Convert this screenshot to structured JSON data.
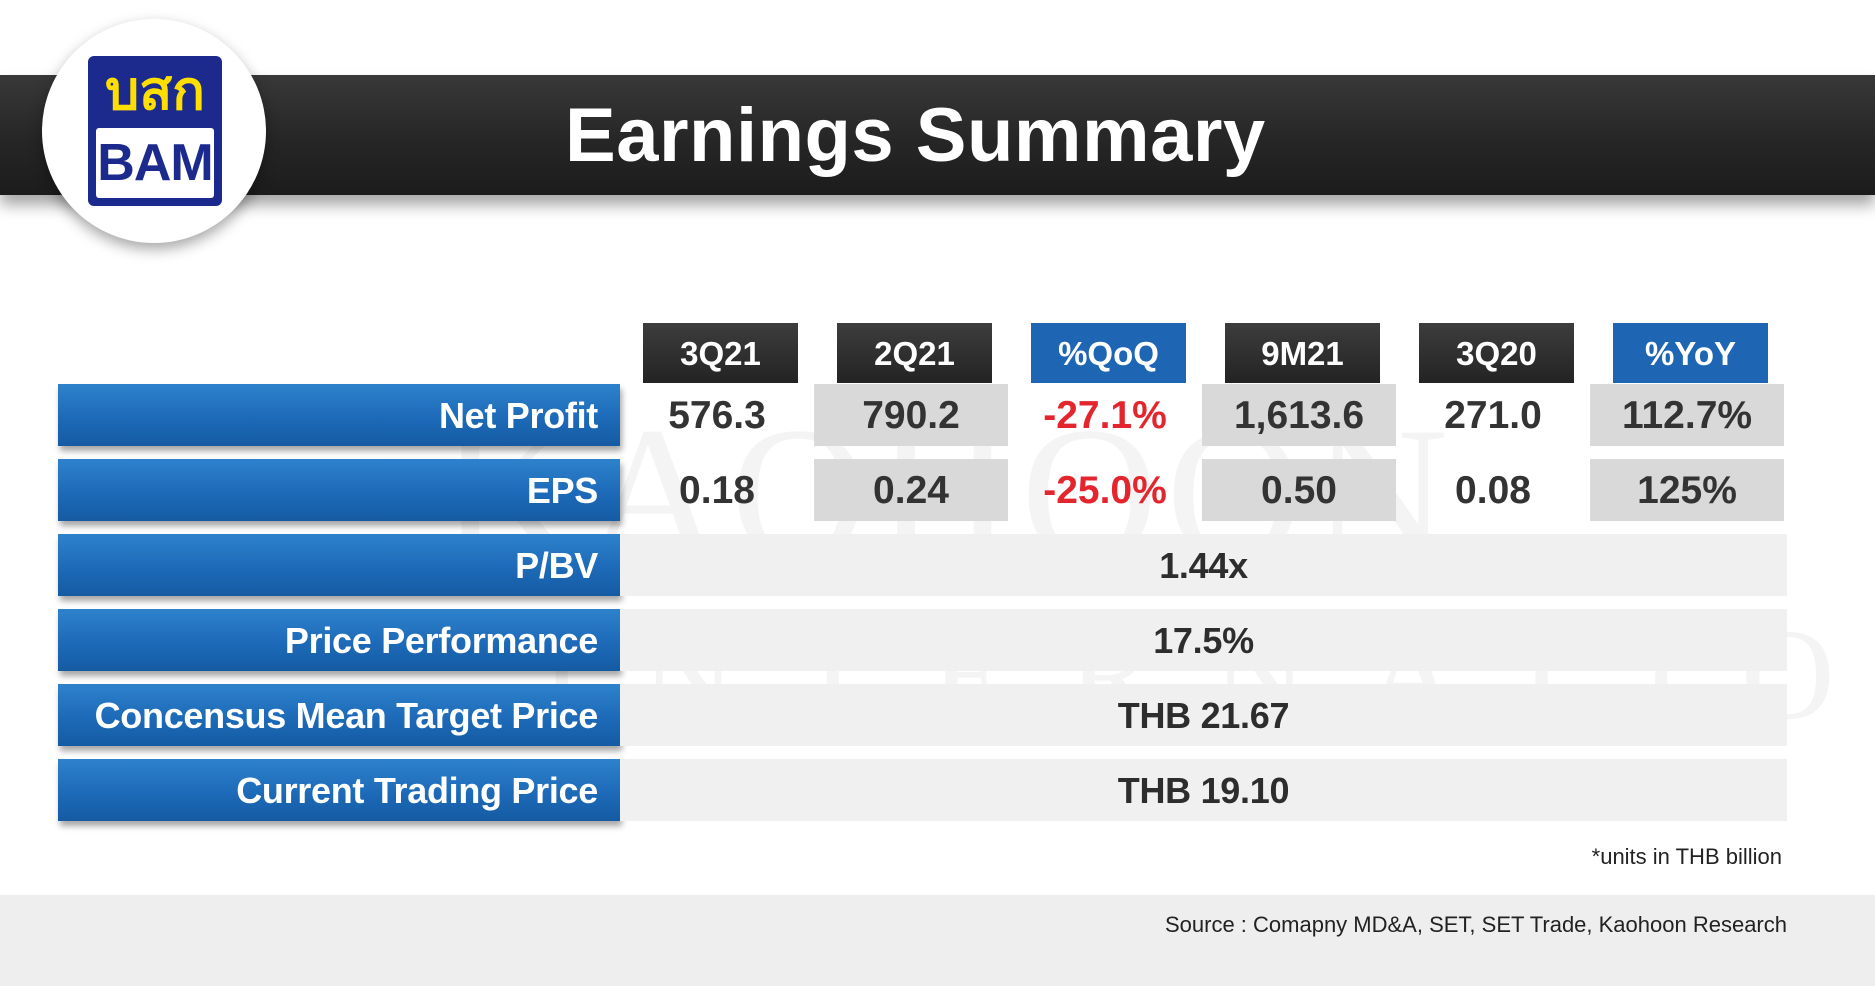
{
  "header": {
    "title": "Earnings Summary",
    "logo_thai": "บสก",
    "logo_ticker": "BAM"
  },
  "watermark": {
    "line1": "KAOHOON",
    "line2": "INTERNATIONAL"
  },
  "columns": [
    "3Q21",
    "2Q21",
    "%QoQ",
    "9M21",
    "3Q20",
    "%YoY"
  ],
  "table": {
    "net_profit": {
      "label": "Net Profit",
      "values": [
        "576.3",
        "790.2",
        "-27.1%",
        "1,613.6",
        "271.0",
        "112.7%"
      ]
    },
    "eps": {
      "label": "EPS",
      "values": [
        "0.18",
        "0.24",
        "-25.0%",
        "0.50",
        "0.08",
        "125%"
      ]
    },
    "pbv": {
      "label": "P/BV",
      "value": "1.44x"
    },
    "price_performance": {
      "label": "Price Performance",
      "value": "17.5%"
    },
    "target_price": {
      "label": "Concensus Mean Target Price",
      "value": "THB 21.67"
    },
    "trading_price": {
      "label": "Current Trading Price",
      "value": "THB 19.10"
    }
  },
  "note": "*units in THB billion",
  "source": "Source : Comapny MD&A, SET, SET Trade, Kaohoon Research",
  "colors": {
    "banner": "#262626",
    "label_blue": "#1d6ab8",
    "header_blue": "#1e66b4",
    "negative_red": "#e3262e",
    "logo_navy": "#1b2a8c",
    "logo_yellow": "#ffde00"
  }
}
